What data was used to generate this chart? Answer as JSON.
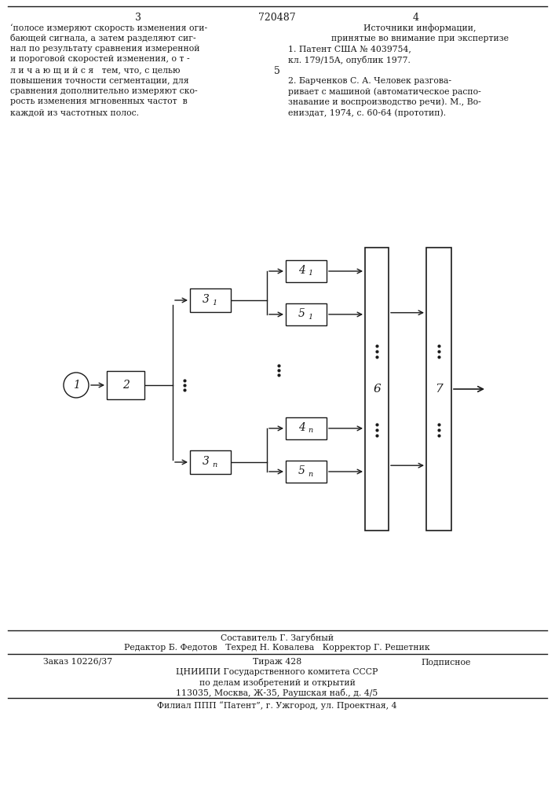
{
  "page_number_left": "3",
  "patent_number": "720487",
  "page_number_right": "4",
  "bg_color": "#ffffff",
  "text_color": "#1a1a1a",
  "line_color": "#1a1a1a",
  "footer_compiler": "Составитель Г. Загубный",
  "footer_editor": "Редактор Б. Федотов",
  "footer_techred": "Техред Н. Ковалева",
  "footer_corrector": "Корректор Г. Решетник",
  "footer_order": "Заказ 10226/37",
  "footer_tirazh": "Тираж 428",
  "footer_podpisnoe": "Подписное",
  "footer_org": "ЦНИИПИ Государственного комитета СССР",
  "footer_dept": "по делам изобретений и открытий",
  "footer_addr": "113035, Москва, Ж-35, Раушская наб., д. 4/5",
  "footer_filial": "Филиал ППП “Патент”, г. Ужгород, ул. Проектная, 4"
}
